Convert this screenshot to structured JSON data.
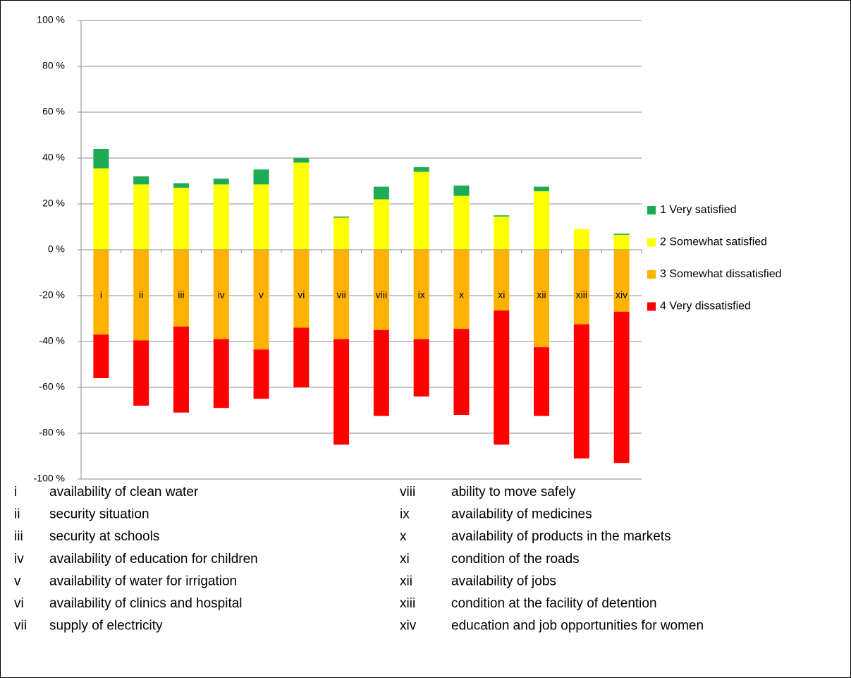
{
  "chart_data": {
    "type": "diverging_stacked_bar",
    "categories": [
      "i",
      "ii",
      "iii",
      "iv",
      "v",
      "vi",
      "vii",
      "viii",
      "ix",
      "x",
      "xi",
      "xii",
      "xiii",
      "xiv"
    ],
    "series": [
      {
        "name": "1 Very satisfied",
        "color": "#1faa55",
        "values": [
          8.5,
          3.5,
          2,
          2.5,
          6.5,
          2,
          0.5,
          5.5,
          2,
          4.5,
          0.5,
          2,
          0,
          0.5
        ]
      },
      {
        "name": "2 Somewhat satisfied",
        "color": "#ffff00",
        "values": [
          35.5,
          28.5,
          27,
          28.5,
          28.5,
          38,
          14,
          22,
          34,
          23.5,
          14.5,
          25.5,
          9,
          6.5
        ]
      },
      {
        "name": "3 Somewhat dissatisfied",
        "color": "#ffb300",
        "values": [
          -37,
          -39.5,
          -33.5,
          -39,
          -43.5,
          -34,
          -39,
          -35,
          -39,
          -34.5,
          -26.5,
          -42.5,
          -32.5,
          -27
        ]
      },
      {
        "name": "4 Very dissatisfied",
        "color": "#ff0000",
        "values": [
          -19,
          -28.5,
          -37.5,
          -30,
          -21.5,
          -26,
          -46,
          -37.5,
          -25,
          -37.5,
          -58.5,
          -30,
          -58.5,
          -66
        ]
      }
    ],
    "ylim": [
      -100,
      100
    ],
    "yticks": [
      {
        "value": -100,
        "label": "-100 %"
      },
      {
        "value": -80,
        "label": "-80 %"
      },
      {
        "value": -60,
        "label": "-60 %"
      },
      {
        "value": -40,
        "label": "-40 %"
      },
      {
        "value": -20,
        "label": "-20 %"
      },
      {
        "value": 0,
        "label": "0 %"
      },
      {
        "value": 20,
        "label": "20 %"
      },
      {
        "value": 40,
        "label": "40 %"
      },
      {
        "value": 60,
        "label": "60 %"
      },
      {
        "value": 80,
        "label": "80 %"
      },
      {
        "value": 100,
        "label": "100 %"
      }
    ],
    "grid": true,
    "legend": "right",
    "notes": [
      {
        "code": "i",
        "text": "availability of clean water"
      },
      {
        "code": "ii",
        "text": "security situation"
      },
      {
        "code": "iii",
        "text": "security at schools"
      },
      {
        "code": "iv",
        "text": "availability of education for children"
      },
      {
        "code": "v",
        "text": "availability of water for irrigation"
      },
      {
        "code": "vi",
        "text": "availability of clinics and hospital"
      },
      {
        "code": "vii",
        "text": "supply of electricity"
      },
      {
        "code": "viii",
        "text": "ability to move safely"
      },
      {
        "code": "ix",
        "text": "availability of medicines"
      },
      {
        "code": "x",
        "text": "availability of products in the markets"
      },
      {
        "code": "xi",
        "text": "condition of the roads"
      },
      {
        "code": "xii",
        "text": "availability of jobs"
      },
      {
        "code": "xiii",
        "text": "condition at the facility of detention"
      },
      {
        "code": "xiv",
        "text": "education and job opportunities for women"
      }
    ]
  }
}
